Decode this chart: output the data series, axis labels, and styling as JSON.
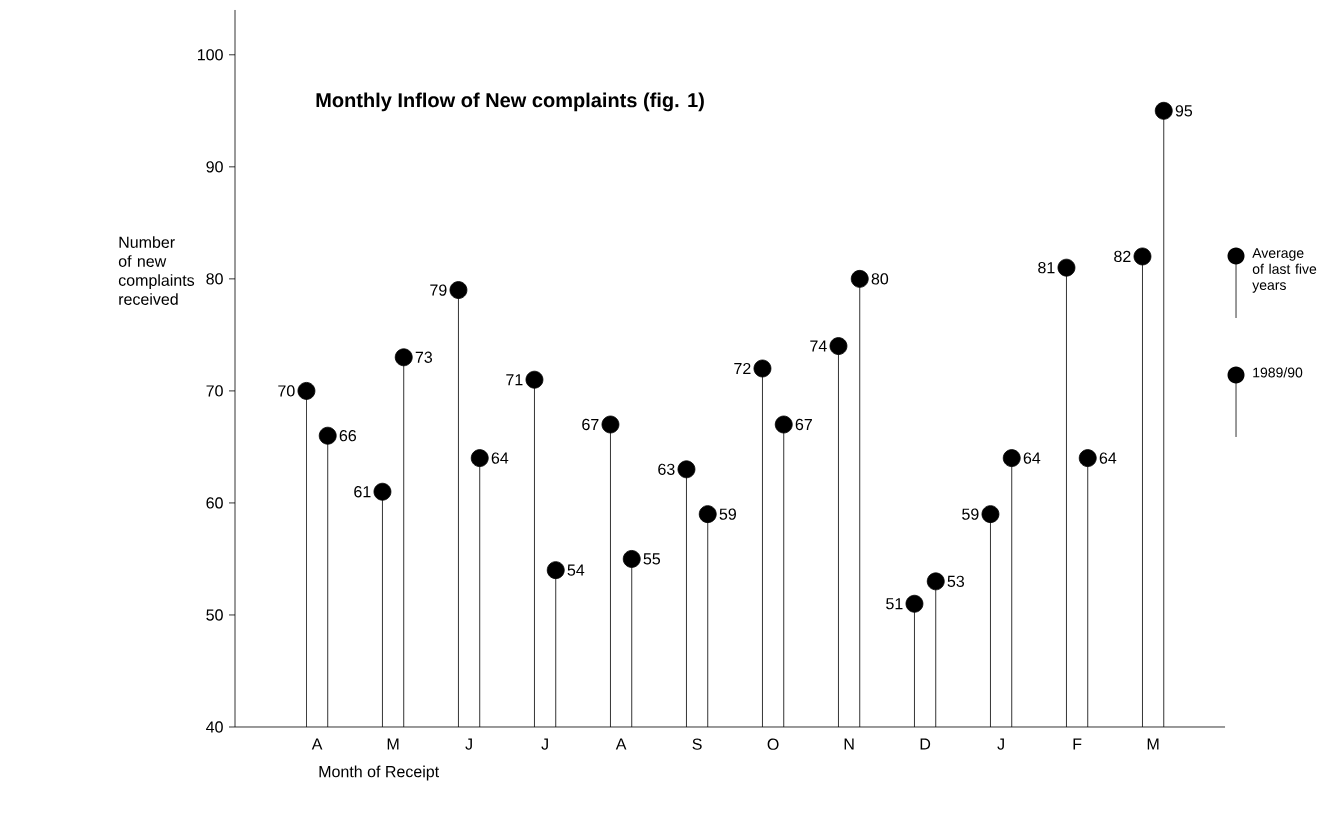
{
  "chart_data": {
    "type": "lollipop",
    "title": "Monthly Inflow of New complaints (fig. 1)",
    "xlabel": "Month of Receipt",
    "ylabel": "Number of new complaints received",
    "categories": [
      "A",
      "M",
      "J",
      "J",
      "A",
      "S",
      "O",
      "N",
      "D",
      "J",
      "F",
      "M"
    ],
    "series": [
      {
        "name": "Average of last five years",
        "color": "#000000",
        "values": [
          70,
          61,
          79,
          71,
          67,
          63,
          72,
          74,
          51,
          59,
          81,
          82
        ]
      },
      {
        "name": "1989/90",
        "color": "#000000",
        "values": [
          66,
          73,
          64,
          54,
          55,
          59,
          67,
          80,
          53,
          64,
          64,
          95
        ]
      }
    ],
    "ylim": [
      40,
      104
    ],
    "yticks": [
      40,
      50,
      60,
      70,
      80,
      90,
      100
    ],
    "data_labels": true,
    "legend": "right",
    "marker": "circle"
  }
}
